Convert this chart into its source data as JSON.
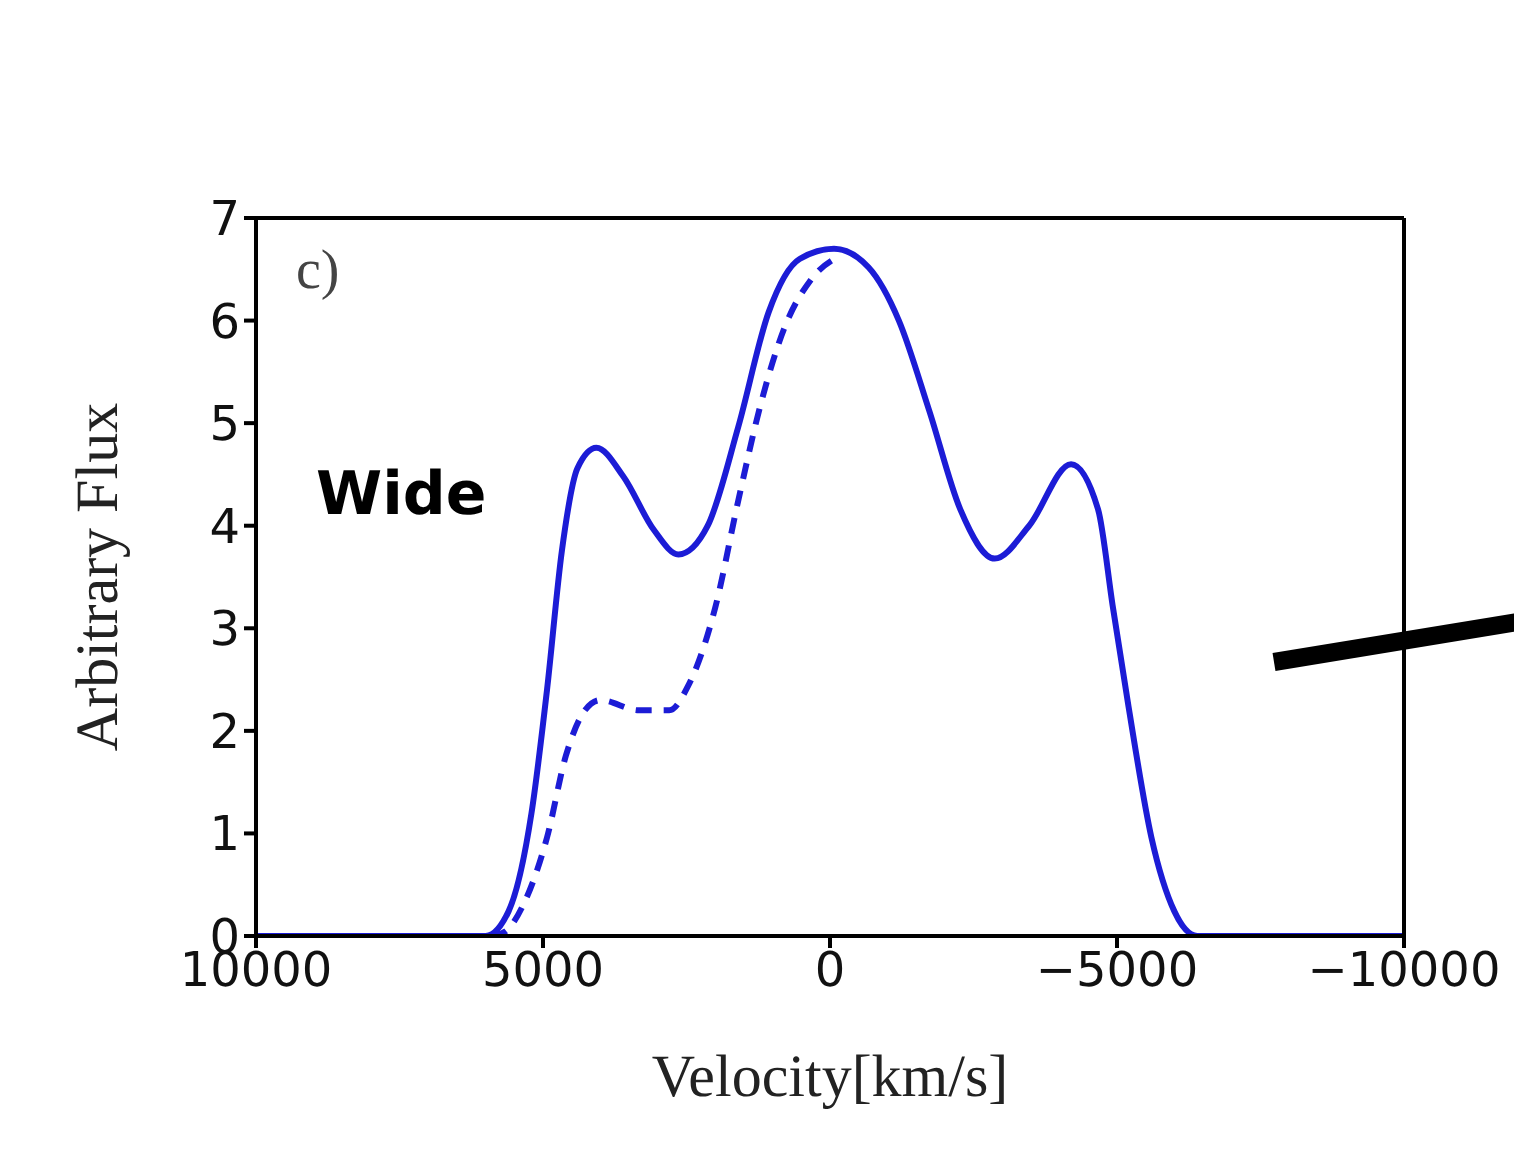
{
  "chart_data": {
    "type": "line",
    "xlabel": "Velocity[km/s]",
    "ylabel": "Arbitrary Flux",
    "annotations": [
      "c)",
      "Wide"
    ],
    "xlim": [
      10000,
      -10000
    ],
    "xticks": [
      10000,
      5000,
      0,
      {
        "value": -5000,
        "label": "−5000"
      },
      {
        "value": -10000,
        "label": "−10000"
      }
    ],
    "ylim": [
      0,
      7
    ],
    "yticks": [
      0,
      1,
      2,
      3,
      4,
      5,
      6,
      7
    ],
    "series": [
      {
        "color": "#1c1cd6",
        "line_style": "solid",
        "x": [
          10000,
          6000,
          5600,
          5200,
          4930,
          4670,
          4400,
          4070,
          3600,
          3070,
          2640,
          2130,
          1600,
          1070,
          530,
          -70,
          -670,
          -1200,
          -1730,
          -2270,
          -2870,
          -3470,
          -4200,
          -4670,
          -4930,
          -5200,
          -5600,
          -6000,
          -6400,
          -10000
        ],
        "values": [
          0,
          0,
          0.24,
          1.2,
          2.4,
          3.76,
          4.56,
          4.76,
          4.48,
          3.96,
          3.72,
          4.0,
          4.96,
          6.08,
          6.6,
          6.7,
          6.52,
          6.0,
          5.12,
          4.16,
          3.68,
          4.0,
          4.6,
          4.16,
          3.2,
          2.24,
          0.96,
          0.24,
          0,
          0
        ]
      },
      {
        "color": "#1c1cd6",
        "line_style": "dashed",
        "x": [
          5900,
          5670,
          5330,
          4930,
          4600,
          4270,
          4000,
          3330,
          2800,
          2470,
          2000,
          1600,
          1200,
          800,
          330,
          -200
        ],
        "values": [
          0,
          0.04,
          0.32,
          0.96,
          1.76,
          2.2,
          2.3,
          2.2,
          2.2,
          2.44,
          3.2,
          4.24,
          5.2,
          5.92,
          6.4,
          6.64
        ]
      }
    ]
  }
}
